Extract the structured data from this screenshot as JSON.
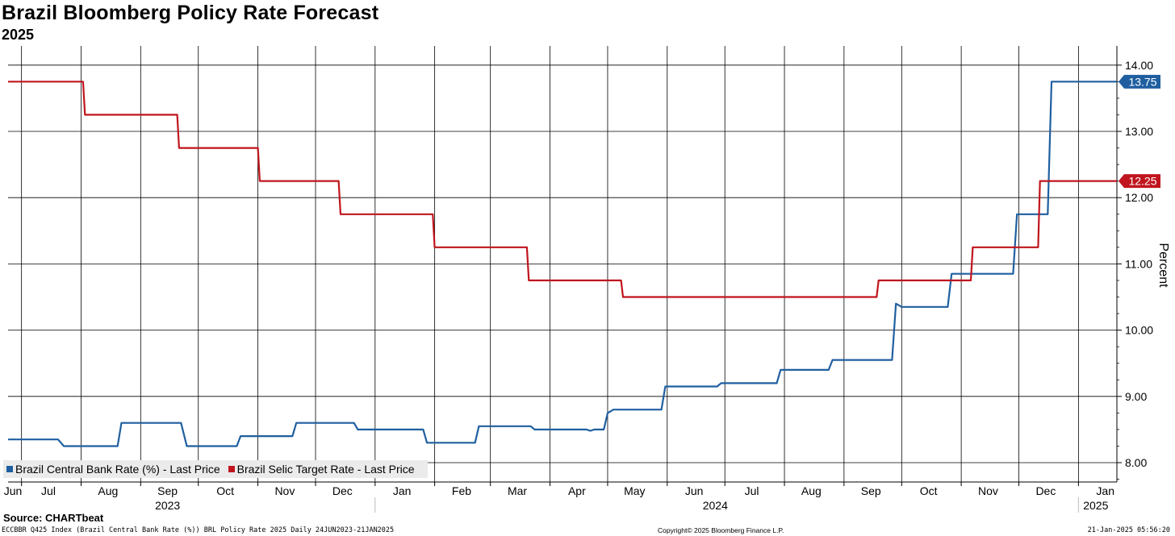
{
  "title": "Brazil Bloomberg Policy Rate Forecast",
  "subtitle": "2025",
  "source": "Source: CHARTbeat",
  "footer": {
    "left": "ECCBBR Q425 Index (Brazil Central Bank Rate (%)) BRL Policy Rate 2025  Daily 24JUN2023-21JAN2025",
    "center": "Copyright© 2025 Bloomberg Finance L.P.",
    "right": "21-Jan-2025 05:56:20"
  },
  "chart_data": {
    "type": "line",
    "title": "Brazil Bloomberg Policy Rate Forecast",
    "subtitle": "2025",
    "ylabel": "Percent",
    "ylim": [
      7.7,
      14.2
    ],
    "xlim": [
      "2023-06-24",
      "2025-01-21"
    ],
    "y_ticks": [
      "8.00",
      "9.00",
      "10.00",
      "11.00",
      "12.00",
      "13.00",
      "14.00"
    ],
    "x_month_ticks": [
      {
        "label": "Jun",
        "date": "2023-06-24"
      },
      {
        "label": "Jul",
        "date": "2023-07-15"
      },
      {
        "label": "Aug",
        "date": "2023-08-15"
      },
      {
        "label": "Sep",
        "date": "2023-09-15"
      },
      {
        "label": "Oct",
        "date": "2023-10-15"
      },
      {
        "label": "Nov",
        "date": "2023-11-15"
      },
      {
        "label": "Dec",
        "date": "2023-12-15"
      },
      {
        "label": "Jan",
        "date": "2024-01-15"
      },
      {
        "label": "Feb",
        "date": "2024-02-15"
      },
      {
        "label": "Mar",
        "date": "2024-03-15"
      },
      {
        "label": "Apr",
        "date": "2024-04-15"
      },
      {
        "label": "May",
        "date": "2024-05-15"
      },
      {
        "label": "Jun",
        "date": "2024-06-15"
      },
      {
        "label": "Jul",
        "date": "2024-07-15"
      },
      {
        "label": "Aug",
        "date": "2024-08-15"
      },
      {
        "label": "Sep",
        "date": "2024-09-15"
      },
      {
        "label": "Oct",
        "date": "2024-10-15"
      },
      {
        "label": "Nov",
        "date": "2024-11-15"
      },
      {
        "label": "Dec",
        "date": "2024-12-15"
      },
      {
        "label": "Jan",
        "date": "2025-01-15"
      }
    ],
    "month_gridlines": [
      "2023-07-01",
      "2023-08-01",
      "2023-09-01",
      "2023-10-01",
      "2023-11-01",
      "2023-12-01",
      "2024-01-01",
      "2024-02-01",
      "2024-03-01",
      "2024-04-01",
      "2024-05-01",
      "2024-06-01",
      "2024-07-01",
      "2024-08-01",
      "2024-09-01",
      "2024-10-01",
      "2024-11-01",
      "2024-12-01",
      "2025-01-01"
    ],
    "x_year_ticks": [
      {
        "label": "2023",
        "date": "2023-09-15"
      },
      {
        "label": "2024",
        "date": "2024-06-26"
      },
      {
        "label": "2025",
        "date": "2025-01-10"
      }
    ],
    "year_separators": [
      "2024-01-01",
      "2025-01-01"
    ],
    "grid": true,
    "legend_position": "bottom-left",
    "series": [
      {
        "name": "Brazil Central Bank Rate (%) - Last Price",
        "color": "#1f5fa0",
        "last_value": "13.75",
        "points": [
          [
            "2023-06-24",
            8.35
          ],
          [
            "2023-07-20",
            8.35
          ],
          [
            "2023-07-23",
            8.25
          ],
          [
            "2023-08-20",
            8.25
          ],
          [
            "2023-08-22",
            8.6
          ],
          [
            "2023-09-22",
            8.6
          ],
          [
            "2023-09-25",
            8.25
          ],
          [
            "2023-10-21",
            8.25
          ],
          [
            "2023-10-23",
            8.4
          ],
          [
            "2023-11-19",
            8.4
          ],
          [
            "2023-11-21",
            8.6
          ],
          [
            "2023-12-21",
            8.6
          ],
          [
            "2023-12-23",
            8.5
          ],
          [
            "2024-01-26",
            8.5
          ],
          [
            "2024-01-28",
            8.3
          ],
          [
            "2024-02-22",
            8.3
          ],
          [
            "2024-02-24",
            8.55
          ],
          [
            "2024-03-22",
            8.55
          ],
          [
            "2024-03-24",
            8.5
          ],
          [
            "2024-04-20",
            8.5
          ],
          [
            "2024-04-22",
            8.48
          ],
          [
            "2024-04-24",
            8.5
          ],
          [
            "2024-04-29",
            8.5
          ],
          [
            "2024-05-01",
            8.75
          ],
          [
            "2024-05-04",
            8.8
          ],
          [
            "2024-05-29",
            8.8
          ],
          [
            "2024-05-31",
            9.15
          ],
          [
            "2024-06-27",
            9.15
          ],
          [
            "2024-06-29",
            9.2
          ],
          [
            "2024-07-28",
            9.2
          ],
          [
            "2024-07-30",
            9.4
          ],
          [
            "2024-08-24",
            9.4
          ],
          [
            "2024-08-26",
            9.55
          ],
          [
            "2024-09-26",
            9.55
          ],
          [
            "2024-09-28",
            10.4
          ],
          [
            "2024-10-01",
            10.35
          ],
          [
            "2024-10-25",
            10.35
          ],
          [
            "2024-10-27",
            10.85
          ],
          [
            "2024-11-28",
            10.85
          ],
          [
            "2024-11-30",
            11.75
          ],
          [
            "2024-12-16",
            11.75
          ],
          [
            "2024-12-18",
            13.75
          ],
          [
            "2025-01-21",
            13.75
          ]
        ]
      },
      {
        "name": "Brazil Selic Target Rate - Last Price",
        "color": "#c0151e",
        "last_value": "12.25",
        "points": [
          [
            "2023-06-24",
            13.75
          ],
          [
            "2023-08-02",
            13.75
          ],
          [
            "2023-08-03",
            13.25
          ],
          [
            "2023-09-20",
            13.25
          ],
          [
            "2023-09-21",
            12.75
          ],
          [
            "2023-11-01",
            12.75
          ],
          [
            "2023-11-02",
            12.25
          ],
          [
            "2023-12-13",
            12.25
          ],
          [
            "2023-12-14",
            11.75
          ],
          [
            "2024-01-31",
            11.75
          ],
          [
            "2024-02-01",
            11.25
          ],
          [
            "2024-03-20",
            11.25
          ],
          [
            "2024-03-21",
            10.75
          ],
          [
            "2024-05-08",
            10.75
          ],
          [
            "2024-05-09",
            10.5
          ],
          [
            "2024-09-18",
            10.5
          ],
          [
            "2024-09-19",
            10.75
          ],
          [
            "2024-11-06",
            10.75
          ],
          [
            "2024-11-07",
            11.25
          ],
          [
            "2024-12-11",
            11.25
          ],
          [
            "2024-12-12",
            12.25
          ],
          [
            "2025-01-21",
            12.25
          ]
        ]
      }
    ]
  }
}
